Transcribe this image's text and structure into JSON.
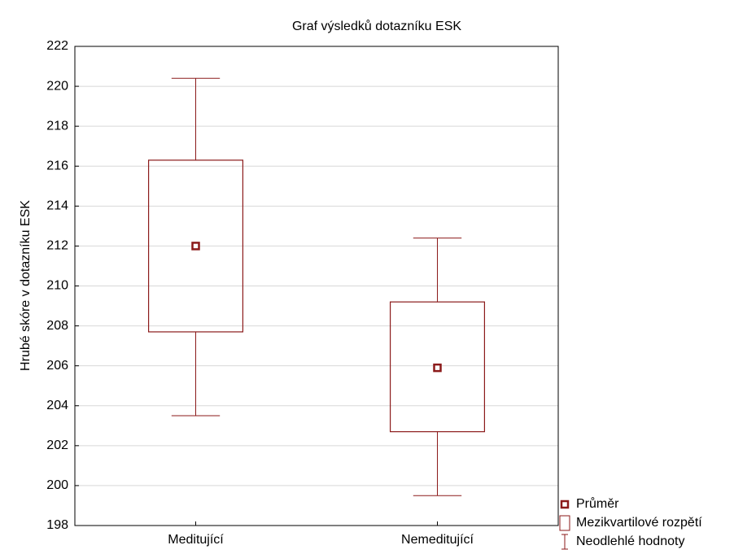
{
  "chart_data": {
    "type": "box",
    "title": "Graf výsledků dotazníku ESK",
    "y_label": "Hrubé skóre v dotazníku ESK",
    "categories": [
      "Meditující",
      "Nemeditující"
    ],
    "mean": [
      212.0,
      205.9
    ],
    "q1": [
      207.7,
      202.7
    ],
    "q3": [
      216.3,
      209.2
    ],
    "whisker_low": [
      203.5,
      199.5
    ],
    "whisker_high": [
      220.4,
      212.4
    ],
    "color": "#8b1a1a",
    "ylim": [
      198,
      222
    ],
    "yticks": [
      198,
      200,
      202,
      204,
      206,
      208,
      210,
      212,
      214,
      216,
      218,
      220,
      222
    ],
    "grid": true,
    "legend": [
      "Průměr",
      "Mezikvartilové rozpětí",
      "Neodlehlé hodnoty"
    ],
    "legend_position": "bottom-right"
  }
}
